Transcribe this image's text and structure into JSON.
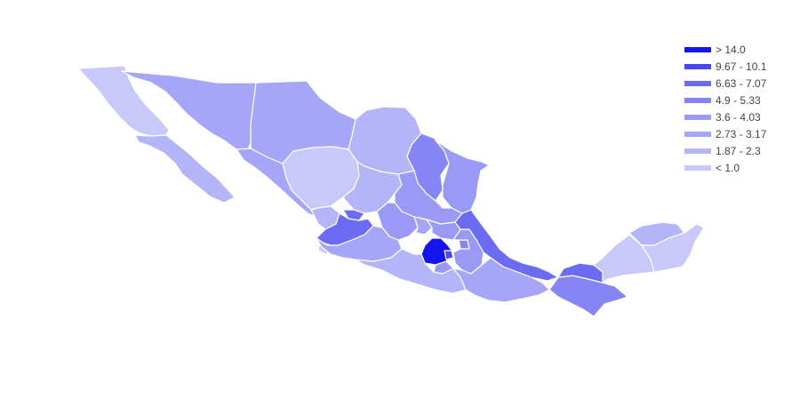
{
  "chart_data": {
    "type": "choropleth",
    "legend_position": "top-right",
    "legend": [
      {
        "label": "> 14.0",
        "color": "#1414ee"
      },
      {
        "label": "9.67 - 10.1",
        "color": "#4848f0"
      },
      {
        "label": "6.63 - 7.07",
        "color": "#6b6bf3"
      },
      {
        "label": "4.9 - 5.33",
        "color": "#8585f5"
      },
      {
        "label": "3.6 - 4.03",
        "color": "#9999f6"
      },
      {
        "label": "2.73 - 3.17",
        "color": "#a6a6f8"
      },
      {
        "label": "1.87 - 2.3",
        "color": "#b4b4f9"
      },
      {
        "label": "< 1.0",
        "color": "#c8c8fb"
      }
    ],
    "regions": [
      {
        "name": "Baja California",
        "bin": 7
      },
      {
        "name": "Baja California Sur",
        "bin": 6
      },
      {
        "name": "Sonora",
        "bin": 5
      },
      {
        "name": "Chihuahua",
        "bin": 5
      },
      {
        "name": "Coahuila",
        "bin": 6
      },
      {
        "name": "Nuevo León",
        "bin": 3
      },
      {
        "name": "Tamaulipas",
        "bin": 4
      },
      {
        "name": "Sinaloa",
        "bin": 5
      },
      {
        "name": "Durango",
        "bin": 7
      },
      {
        "name": "Zacatecas",
        "bin": 6
      },
      {
        "name": "San Luis Potosí",
        "bin": 4
      },
      {
        "name": "Nayarit",
        "bin": 6
      },
      {
        "name": "Aguascalientes",
        "bin": 2
      },
      {
        "name": "Jalisco",
        "bin": 2
      },
      {
        "name": "Colima",
        "bin": 7
      },
      {
        "name": "Guanajuato",
        "bin": 4
      },
      {
        "name": "Querétaro",
        "bin": 5
      },
      {
        "name": "Hidalgo",
        "bin": 4
      },
      {
        "name": "Michoacán",
        "bin": 5
      },
      {
        "name": "Estado de México",
        "bin": 0
      },
      {
        "name": "Ciudad de México",
        "bin": 1
      },
      {
        "name": "Morelos",
        "bin": 4
      },
      {
        "name": "Tlaxcala",
        "bin": 3
      },
      {
        "name": "Puebla",
        "bin": 4
      },
      {
        "name": "Veracruz",
        "bin": 2
      },
      {
        "name": "Guerrero",
        "bin": 6
      },
      {
        "name": "Oaxaca",
        "bin": 5
      },
      {
        "name": "Chiapas",
        "bin": 3
      },
      {
        "name": "Tabasco",
        "bin": 2
      },
      {
        "name": "Campeche",
        "bin": 7
      },
      {
        "name": "Yucatán",
        "bin": 6
      },
      {
        "name": "Quintana Roo",
        "bin": 7
      }
    ]
  }
}
